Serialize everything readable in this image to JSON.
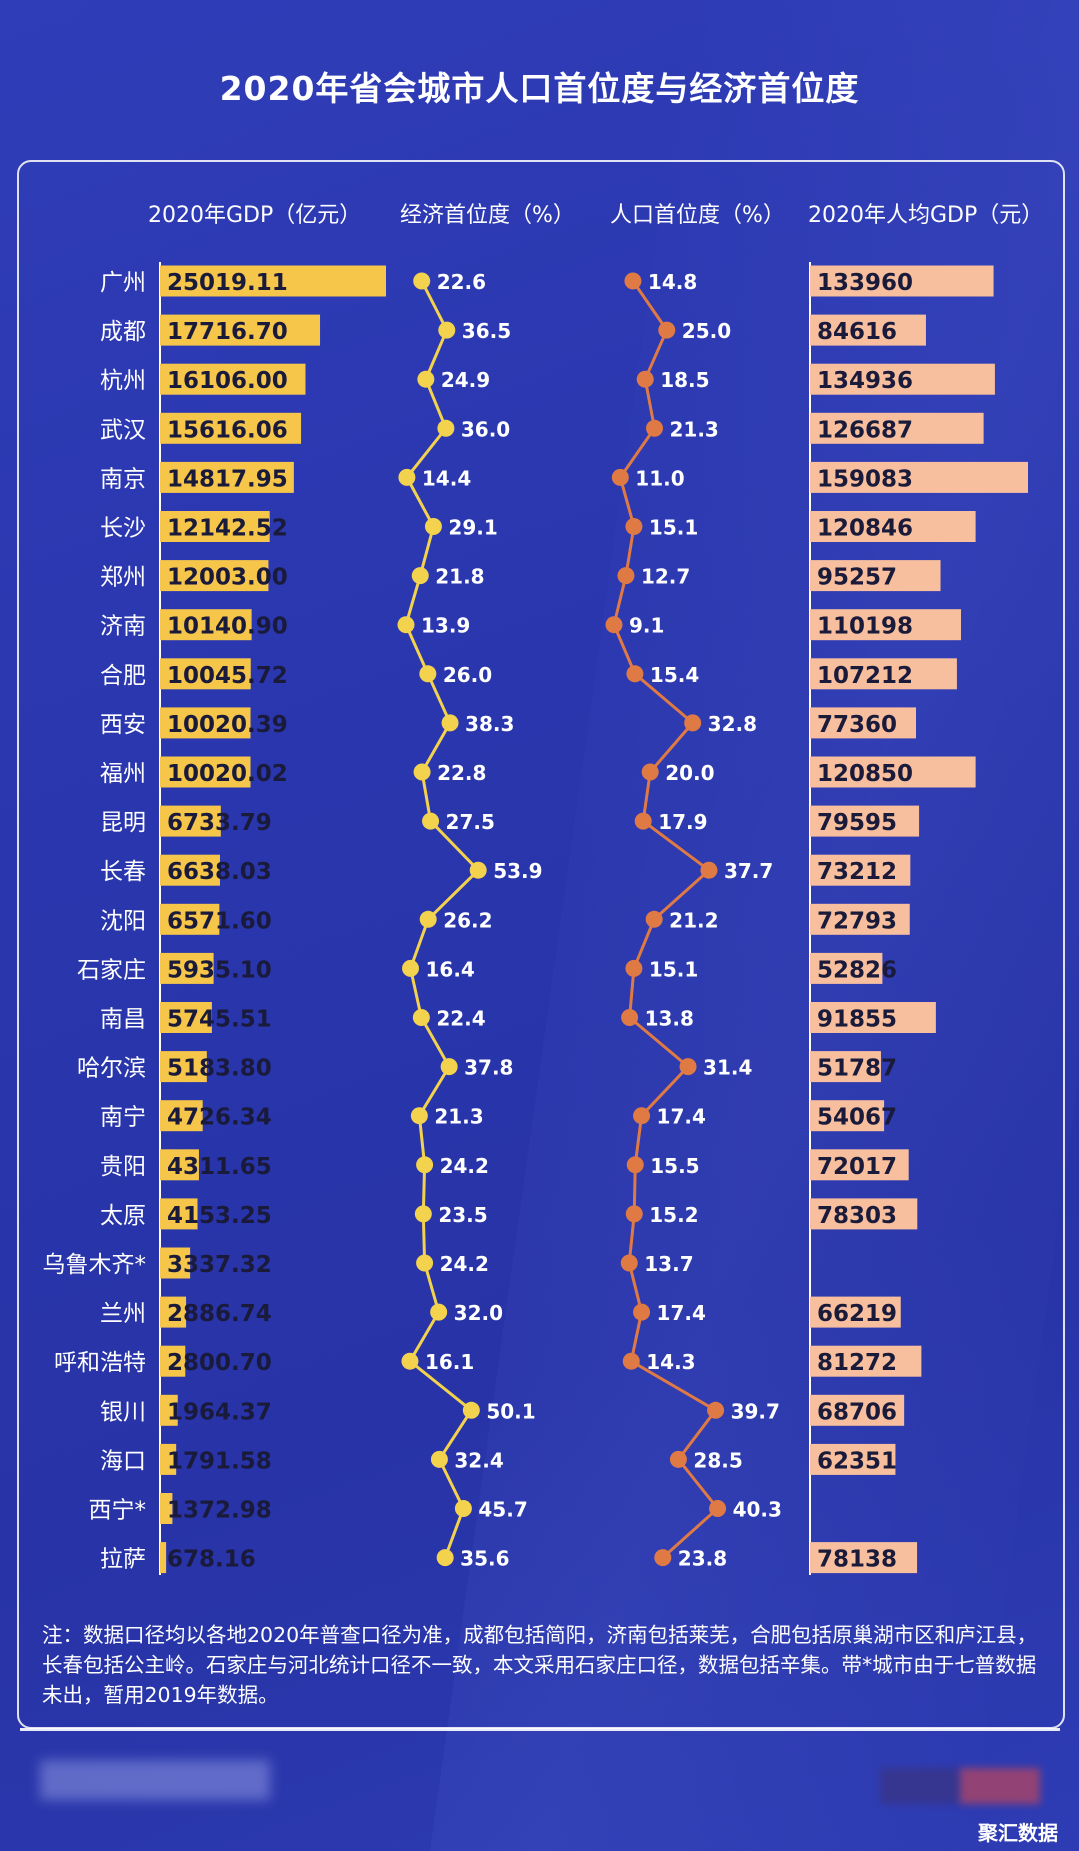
{
  "title": "2020年省会城市人口首位度与经济首位度",
  "headers": {
    "gdp": "2020年GDP（亿元）",
    "econ": "经济首位度（%）",
    "pop": "人口首位度（%）",
    "pcgdp": "2020年人均GDP（元）"
  },
  "note": "注：数据口径均以各地2020年普查口径为准，成都包括简阳，济南包括莱芜，合肥包括原巢湖市区和庐江县，长春包括公主岭。石家庄与河北统计口径不一致，本文采用石家庄口径，数据包括辛集。带*城市由于七普数据未出，暂用2019年数据。",
  "watermark": "聚汇数据",
  "colors": {
    "gdp_bar": "#f6c64a",
    "econ_line": "#f3d24e",
    "pop_line": "#e07a45",
    "pcgdp_bar": "#f7bf9e"
  },
  "chart_data": {
    "type": "table",
    "cities": [
      "广州",
      "成都",
      "杭州",
      "武汉",
      "南京",
      "长沙",
      "郑州",
      "济南",
      "合肥",
      "西安",
      "福州",
      "昆明",
      "长春",
      "沈阳",
      "石家庄",
      "南昌",
      "哈尔滨",
      "南宁",
      "贵阳",
      "太原",
      "乌鲁木齐*",
      "兰州",
      "呼和浩特",
      "银川",
      "海口",
      "西宁*",
      "拉萨"
    ],
    "gdp": [
      "25019.11",
      "17716.70",
      "16106.00",
      "15616.06",
      "14817.95",
      "12142.52",
      "12003.00",
      "10140.90",
      "10045.72",
      "10020.39",
      "10020.02",
      "6733.79",
      "6638.03",
      "6571.60",
      "5935.10",
      "5745.51",
      "5183.80",
      "4726.34",
      "4311.65",
      "4153.25",
      "3337.32",
      "2886.74",
      "2800.70",
      "1964.37",
      "1791.58",
      "1372.98",
      "678.16"
    ],
    "econ": [
      "22.6",
      "36.5",
      "24.9",
      "36.0",
      "14.4",
      "29.1",
      "21.8",
      "13.9",
      "26.0",
      "38.3",
      "22.8",
      "27.5",
      "53.9",
      "26.2",
      "16.4",
      "22.4",
      "37.8",
      "21.3",
      "24.2",
      "23.5",
      "24.2",
      "32.0",
      "16.1",
      "50.1",
      "32.4",
      "45.7",
      "35.6"
    ],
    "pop": [
      "14.8",
      "25.0",
      "18.5",
      "21.3",
      "11.0",
      "15.1",
      "12.7",
      "9.1",
      "15.4",
      "32.8",
      "20.0",
      "17.9",
      "37.7",
      "21.2",
      "15.1",
      "13.8",
      "31.4",
      "17.4",
      "15.5",
      "15.2",
      "13.7",
      "17.4",
      "14.3",
      "39.7",
      "28.5",
      "40.3",
      "23.8"
    ],
    "pcgdp": [
      "133960",
      "84616",
      "134936",
      "126687",
      "159083",
      "120846",
      "95257",
      "110198",
      "107212",
      "77360",
      "120850",
      "79595",
      "73212",
      "72793",
      "52826",
      "91855",
      "51787",
      "54067",
      "72017",
      "78303",
      "",
      "66219",
      "81272",
      "68706",
      "62351",
      "",
      "78138"
    ]
  }
}
